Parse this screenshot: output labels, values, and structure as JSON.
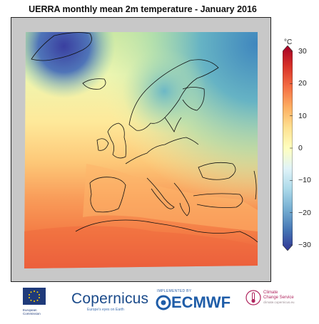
{
  "title": "UERRA monthly mean 2m temperature - January 2016",
  "colorbar": {
    "unit": "°C",
    "ticks": [
      "30",
      "20",
      "10",
      "0",
      "−10",
      "−20",
      "−30"
    ],
    "tick_values": [
      30,
      20,
      10,
      0,
      -10,
      -20,
      -30
    ],
    "range": [
      -30,
      30
    ],
    "colors": [
      "#313695",
      "#4575b4",
      "#74add1",
      "#abd9e9",
      "#e0f3f8",
      "#ffffbf",
      "#fee090",
      "#fdae61",
      "#f46d43",
      "#d73027",
      "#a50026"
    ]
  },
  "map": {
    "land_fill": "#c8c8c8",
    "coastline_color": "#111111"
  },
  "logos": {
    "ec_line1": "European",
    "ec_line2": "Commission",
    "copernicus_name": "Copernicus",
    "copernicus_tagline": "Europe's eyes on Earth",
    "ecmwf_implemented": "IMPLEMENTED BY",
    "ecmwf_name": "ECMWF",
    "c3s_line1": "Climate",
    "c3s_line2": "Change Service",
    "c3s_url": "climate.copernicus.eu"
  }
}
